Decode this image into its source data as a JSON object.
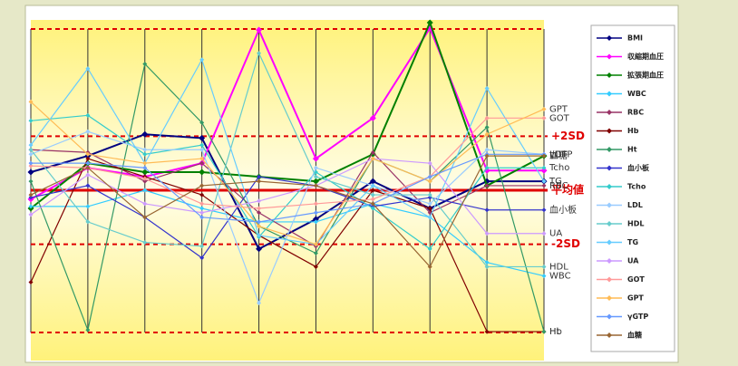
{
  "chart_data": {
    "type": "line",
    "categories": [
      null,
      null,
      null,
      null,
      null,
      null,
      null,
      null,
      null,
      null
    ],
    "ylim": [
      -6.3,
      6.3
    ],
    "reference_lines": [
      {
        "value": 2,
        "label": "+2SD"
      },
      {
        "value": 0,
        "label": "平均値"
      },
      {
        "value": -2,
        "label": "-2SD"
      }
    ],
    "series": [
      {
        "name": "BMI",
        "color": "#000080",
        "values": [
          0.67,
          1.27,
          2.07,
          1.93,
          -2.17,
          -1.07,
          0.33,
          -0.67,
          0.33,
          0.33
        ]
      },
      {
        "name": "収縮期血圧",
        "color": "#ff00ff",
        "values": [
          -0.33,
          0.83,
          0.5,
          1,
          5.93,
          1.17,
          2.67,
          6,
          0.73,
          0.73
        ]
      },
      {
        "name": "拡張期血圧",
        "color": "#008000",
        "values": [
          -0.67,
          1,
          0.67,
          0.67,
          0.5,
          0.33,
          1.33,
          6.2,
          0.17,
          1.27
        ]
      },
      {
        "name": "WBC",
        "color": "#33ccff",
        "values": [
          -0.6,
          -0.6,
          0,
          -0.67,
          -1.17,
          -1.17,
          -0.5,
          -1,
          -2.67,
          -3.17
        ]
      },
      {
        "name": "RBC",
        "color": "#993366",
        "values": [
          1.5,
          1.4,
          0.33,
          1,
          -0.83,
          -2.07,
          1.4,
          -0.83,
          0.17,
          0.17
        ]
      },
      {
        "name": "Hb",
        "color": "#800000",
        "values": [
          -3.4,
          1.17,
          0.5,
          -0.17,
          -1.67,
          -2.83,
          0,
          -0.67,
          -5.23,
          -5.23
        ]
      },
      {
        "name": "Ht",
        "color": "#339966",
        "values": [
          0.33,
          -5.17,
          4.67,
          2.5,
          -1.33,
          -2.33,
          1.17,
          0.33,
          2.33,
          -5.23
        ]
      },
      {
        "name": "血小板",
        "color": "#3333cc",
        "values": [
          -0.27,
          0.17,
          -1,
          -2.5,
          0.5,
          0.17,
          -0.6,
          -0.27,
          -0.73,
          -0.73
        ]
      },
      {
        "name": "Tcho",
        "color": "#33cccc",
        "values": [
          2.57,
          2.77,
          1.33,
          1.67,
          -1.73,
          0.67,
          -0.67,
          -2.17,
          0.83,
          0.83
        ]
      },
      {
        "name": "LDL",
        "color": "#99ccff",
        "values": [
          1.33,
          2.17,
          1.5,
          1.5,
          -4.17,
          0.83,
          0.17,
          -0.5,
          1.5,
          1.33
        ]
      },
      {
        "name": "HDL",
        "color": "#66cccc",
        "values": [
          1.5,
          -1.17,
          -1.93,
          -2.07,
          5.07,
          0.5,
          -0.17,
          -0.17,
          -2.83,
          -2.83
        ]
      },
      {
        "name": "TG",
        "color": "#66ccff",
        "values": [
          1.67,
          4.5,
          1,
          4.83,
          -1.67,
          -2,
          0.17,
          -1,
          3.77,
          0.33
        ]
      },
      {
        "name": "UA",
        "color": "#cc99ff",
        "values": [
          -0.9,
          0.57,
          -0.5,
          -0.83,
          -0.4,
          0.17,
          1.17,
          1,
          -1.6,
          -1.6
        ]
      },
      {
        "name": "GOT",
        "color": "#ff9999",
        "values": [
          0.9,
          0.83,
          0.43,
          -0.5,
          -0.67,
          -0.5,
          -0.33,
          0.5,
          2.67,
          2.67
        ]
      },
      {
        "name": "GPT",
        "color": "#ffbb55",
        "values": [
          3.27,
          1.33,
          1,
          1.17,
          -1.33,
          -2,
          1.17,
          0.33,
          2.07,
          3
        ]
      },
      {
        "name": "γGTP",
        "color": "#6699ff",
        "values": [
          1,
          1,
          0.83,
          -1,
          -1.17,
          -0.83,
          -0.5,
          0.5,
          1.33,
          1.33
        ]
      },
      {
        "name": "血糖",
        "color": "#996633",
        "values": [
          -0.17,
          0.83,
          -1,
          0.17,
          0.33,
          0.17,
          -0.5,
          -2.83,
          1.27,
          1.27
        ]
      }
    ]
  }
}
